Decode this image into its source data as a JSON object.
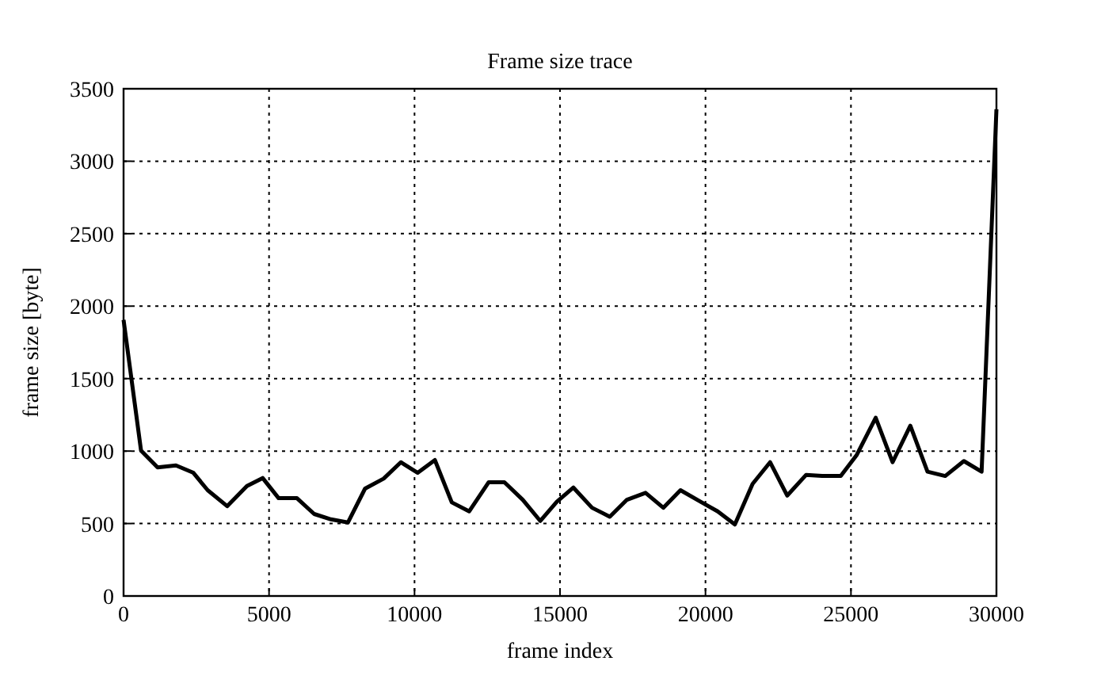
{
  "chart_data": {
    "type": "line",
    "title": "Frame size trace",
    "xlabel": "frame index",
    "ylabel": "frame size [byte]",
    "xlim": [
      0,
      30000
    ],
    "ylim": [
      0,
      3500
    ],
    "xticks": [
      0,
      5000,
      10000,
      15000,
      20000,
      25000,
      30000
    ],
    "yticks": [
      0,
      500,
      1000,
      1500,
      2000,
      2500,
      3000,
      3500
    ],
    "grid": true,
    "line_style": "solid",
    "series": [
      {
        "color": "#000000",
        "x": [
          0,
          600,
          1170,
          1800,
          2400,
          2890,
          3560,
          4240,
          4780,
          5330,
          5960,
          6550,
          7130,
          7710,
          8300,
          8940,
          9530,
          10110,
          10700,
          11280,
          11880,
          12550,
          13090,
          13720,
          14320,
          14890,
          15460,
          16100,
          16710,
          17300,
          17940,
          18550,
          19140,
          19870,
          20420,
          21010,
          21620,
          22220,
          22810,
          23460,
          24010,
          24650,
          25200,
          25850,
          26430,
          27040,
          27630,
          28240,
          28880,
          29490,
          30000
        ],
        "values": [
          1905,
          1004,
          887,
          901,
          850,
          730,
          620,
          759,
          814,
          675,
          675,
          566,
          529,
          507,
          741,
          810,
          923,
          850,
          938,
          646,
          584,
          785,
          785,
          664,
          518,
          650,
          748,
          609,
          547,
          664,
          712,
          609,
          730,
          646,
          584,
          493,
          774,
          923,
          693,
          836,
          828,
          828,
          974,
          1230,
          923,
          1175,
          858,
          828,
          931,
          858,
          3358
        ]
      }
    ]
  }
}
